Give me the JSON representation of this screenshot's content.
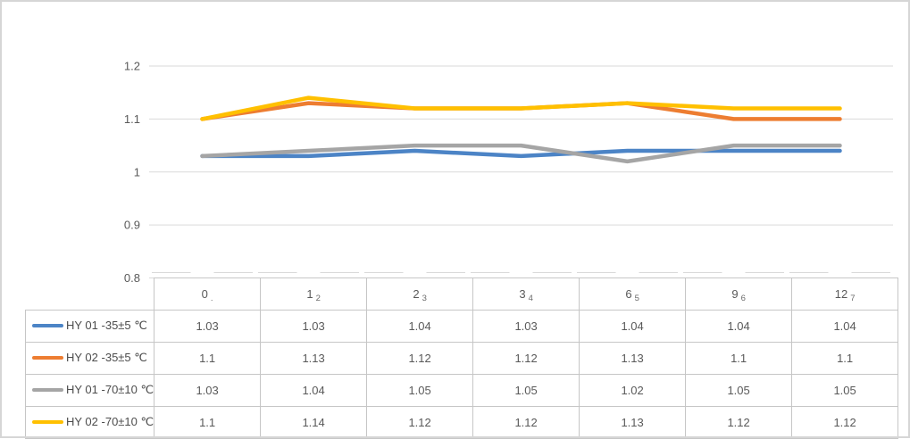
{
  "chart_data": {
    "type": "line",
    "categories": [
      "0",
      "1",
      "2",
      "3",
      "6",
      "9",
      "12"
    ],
    "category_sub_labels": [
      ".",
      "2",
      "3",
      "4",
      "5",
      "6",
      "7"
    ],
    "series": [
      {
        "name": "HY 01 -35±5 ℃",
        "color": "#4C84C6",
        "values": [
          1.03,
          1.03,
          1.04,
          1.03,
          1.04,
          1.04,
          1.04
        ]
      },
      {
        "name": "HY 02 -35±5 ℃",
        "color": "#ED7D31",
        "values": [
          1.1,
          1.13,
          1.12,
          1.12,
          1.13,
          1.1,
          1.1
        ]
      },
      {
        "name": "HY 01 -70±10 ℃",
        "color": "#A5A5A5",
        "values": [
          1.03,
          1.04,
          1.05,
          1.05,
          1.02,
          1.05,
          1.05
        ]
      },
      {
        "name": "HY 02 -70±10 ℃",
        "color": "#FFC000",
        "values": [
          1.1,
          1.14,
          1.12,
          1.12,
          1.13,
          1.12,
          1.12
        ]
      }
    ],
    "y_axis": {
      "tick_labels": [
        "1.2",
        "1.1",
        "1",
        "0.9",
        "0.8"
      ],
      "min": 0.8,
      "max": 1.2
    },
    "title": "",
    "xlabel": "",
    "ylabel": "",
    "gridlines": true,
    "legend_position": "table-left-column",
    "colors": {
      "gridline": "#d9d9d9",
      "axis_text": "#595959",
      "table_border": "#c6c6c6",
      "table_text": "#595959",
      "frame_border": "#d6d6d6",
      "background": "#ffffff"
    }
  }
}
